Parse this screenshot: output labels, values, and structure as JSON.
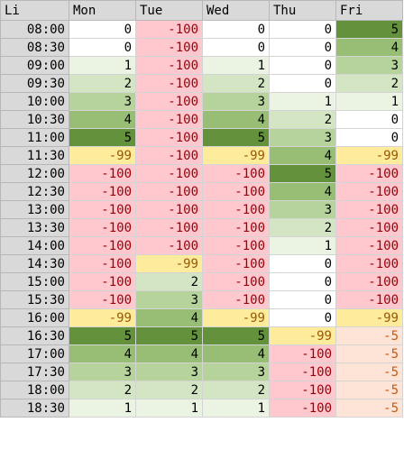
{
  "header": {
    "corner_label": "Li",
    "columns": [
      "Mon",
      "Tue",
      "Wed",
      "Thu",
      "Fri"
    ]
  },
  "rows": [
    {
      "time": "08:00",
      "values": [
        "0",
        "-100",
        "0",
        "0",
        "5"
      ]
    },
    {
      "time": "08:30",
      "values": [
        "0",
        "-100",
        "0",
        "0",
        "4"
      ]
    },
    {
      "time": "09:00",
      "values": [
        "1",
        "-100",
        "1",
        "0",
        "3"
      ]
    },
    {
      "time": "09:30",
      "values": [
        "2",
        "-100",
        "2",
        "0",
        "2"
      ]
    },
    {
      "time": "10:00",
      "values": [
        "3",
        "-100",
        "3",
        "1",
        "1"
      ]
    },
    {
      "time": "10:30",
      "values": [
        "4",
        "-100",
        "4",
        "2",
        "0"
      ]
    },
    {
      "time": "11:00",
      "values": [
        "5",
        "-100",
        "5",
        "3",
        "0"
      ]
    },
    {
      "time": "11:30",
      "values": [
        "-99",
        "-100",
        "-99",
        "4",
        "-99"
      ]
    },
    {
      "time": "12:00",
      "values": [
        "-100",
        "-100",
        "-100",
        "5",
        "-100"
      ]
    },
    {
      "time": "12:30",
      "values": [
        "-100",
        "-100",
        "-100",
        "4",
        "-100"
      ]
    },
    {
      "time": "13:00",
      "values": [
        "-100",
        "-100",
        "-100",
        "3",
        "-100"
      ]
    },
    {
      "time": "13:30",
      "values": [
        "-100",
        "-100",
        "-100",
        "2",
        "-100"
      ]
    },
    {
      "time": "14:00",
      "values": [
        "-100",
        "-100",
        "-100",
        "1",
        "-100"
      ]
    },
    {
      "time": "14:30",
      "values": [
        "-100",
        "-99",
        "-100",
        "0",
        "-100"
      ]
    },
    {
      "time": "15:00",
      "values": [
        "-100",
        "2",
        "-100",
        "0",
        "-100"
      ]
    },
    {
      "time": "15:30",
      "values": [
        "-100",
        "3",
        "-100",
        "0",
        "-100"
      ]
    },
    {
      "time": "16:00",
      "values": [
        "-99",
        "4",
        "-99",
        "0",
        "-99"
      ]
    },
    {
      "time": "16:30",
      "values": [
        "5",
        "5",
        "5",
        "-99",
        "-5"
      ]
    },
    {
      "time": "17:00",
      "values": [
        "4",
        "4",
        "4",
        "-100",
        "-5"
      ]
    },
    {
      "time": "17:30",
      "values": [
        "3",
        "3",
        "3",
        "-100",
        "-5"
      ]
    },
    {
      "time": "18:00",
      "values": [
        "2",
        "2",
        "2",
        "-100",
        "-5"
      ]
    },
    {
      "time": "18:30",
      "values": [
        "1",
        "1",
        "1",
        "-100",
        "-5"
      ]
    }
  ],
  "colors": {
    "v5": "#63913c",
    "v4": "#97be74",
    "v3": "#b6d39b",
    "v2": "#d4e5c4",
    "v1": "#ebf3e3",
    "v0": "#ffffff",
    "neg99": "#ffeb9c",
    "neg100": "#ffc7ce",
    "neg5": "#fde4d6",
    "text_normal": "#000000",
    "text_neg100": "#9c0006",
    "text_neg99": "#9c5700",
    "text_neg5": "#c65911"
  }
}
